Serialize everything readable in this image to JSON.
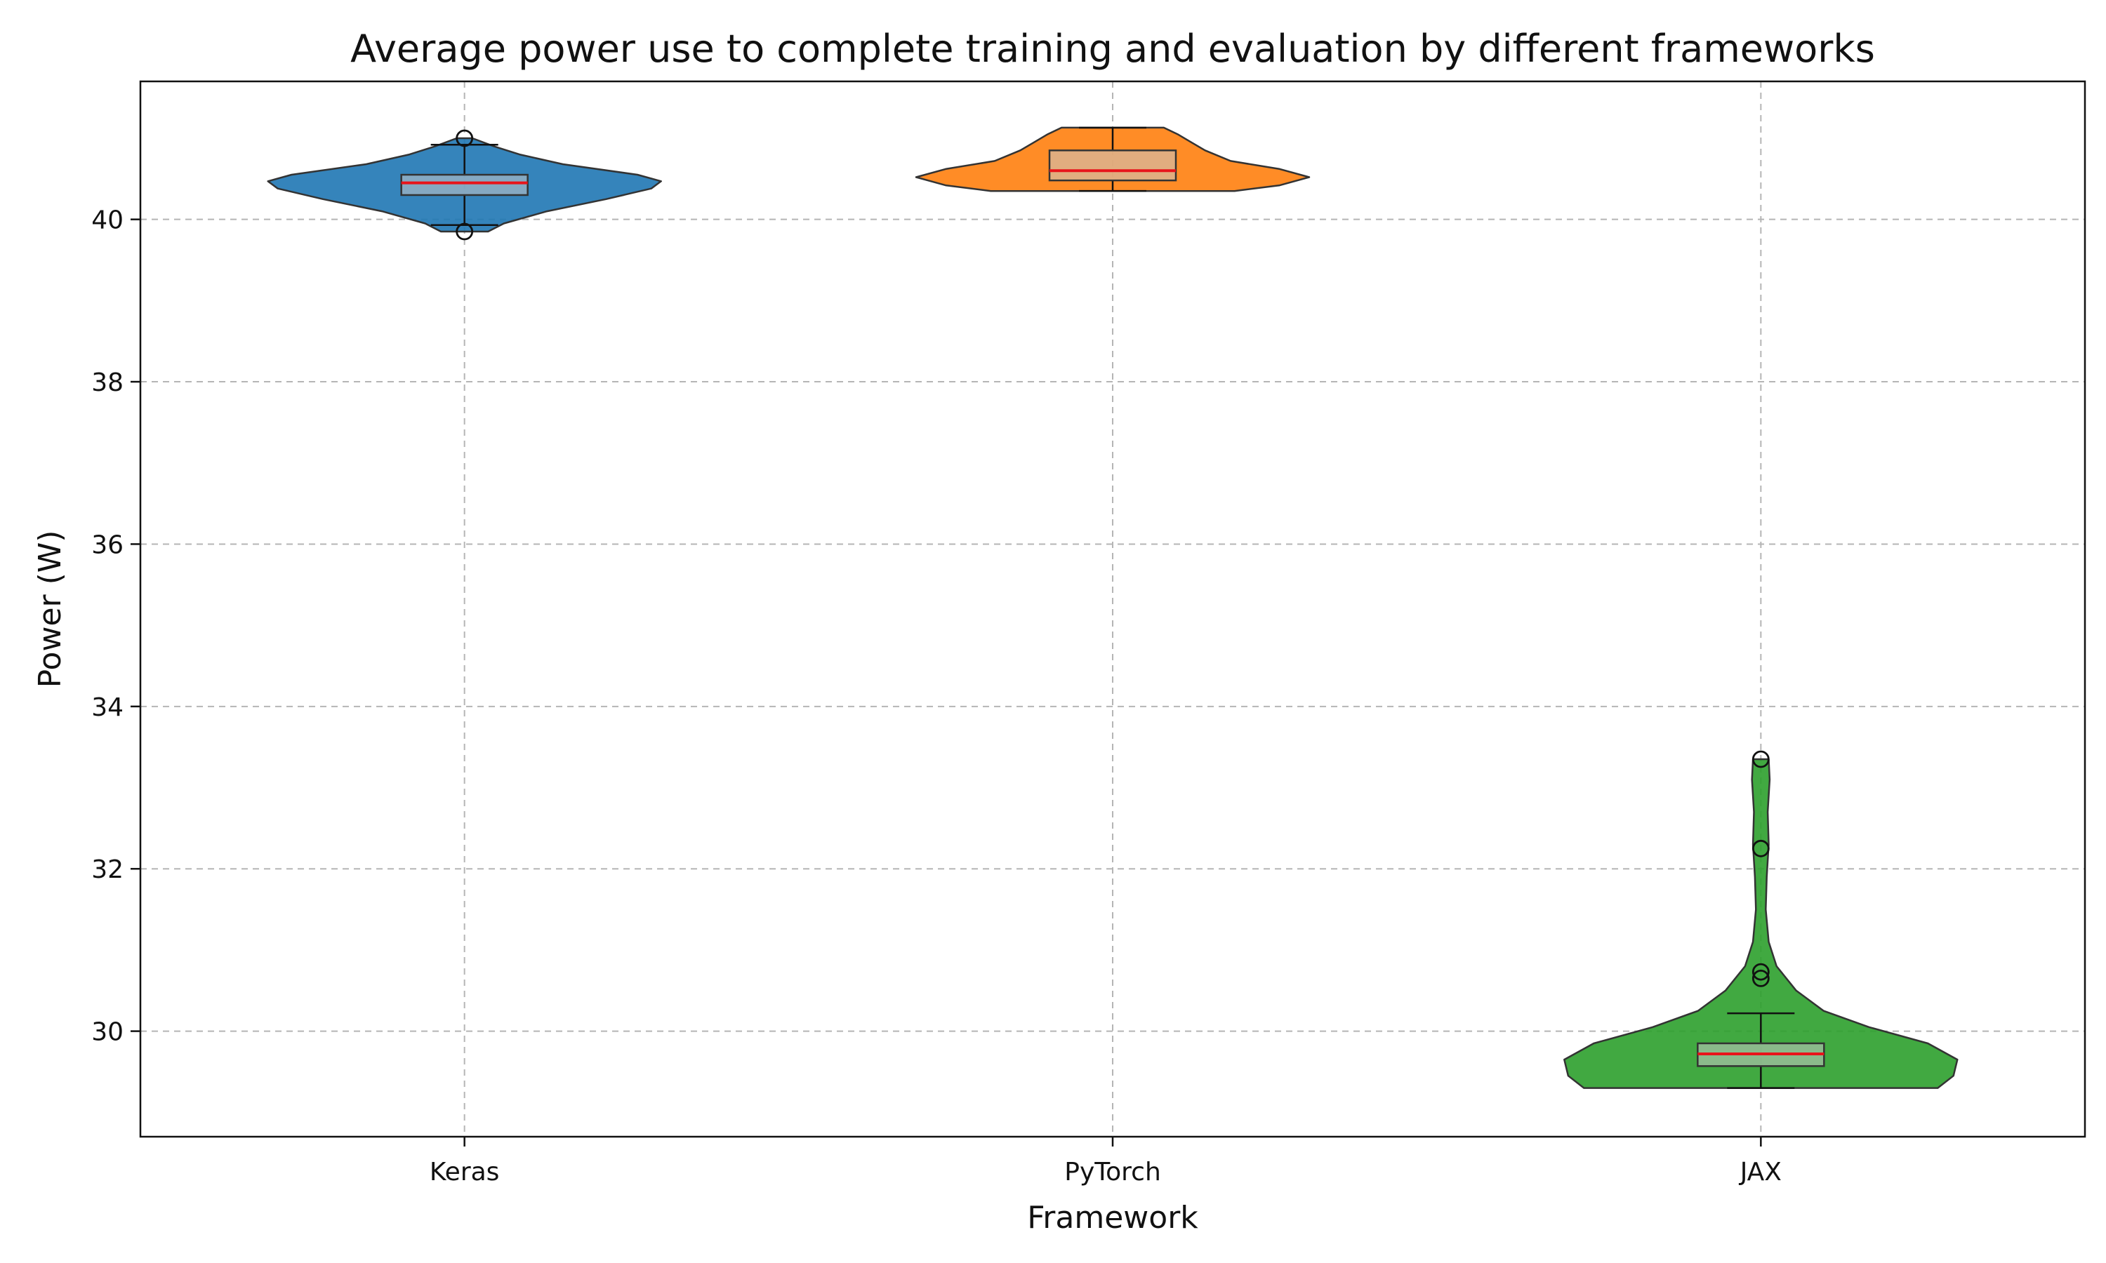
{
  "chart_data": {
    "type": "violin",
    "title": "Average power use to complete training and evaluation by different frameworks",
    "xlabel": "Framework",
    "ylabel": "Power (W)",
    "categories": [
      "Keras",
      "PyTorch",
      "JAX"
    ],
    "ylim": [
      28.7,
      41.7
    ],
    "yticks": [
      "30",
      "32",
      "34",
      "36",
      "38",
      "40"
    ],
    "grid": true,
    "series": [
      {
        "category": "Keras",
        "color": "#1f77b4",
        "min": 39.85,
        "max": 41.0,
        "q1": 40.3,
        "median": 40.45,
        "q3": 40.55,
        "whisker_low": 39.93,
        "whisker_high": 40.92,
        "outliers": [
          41.0,
          39.85
        ],
        "density": [
          [
            39.85,
            0.12
          ],
          [
            39.95,
            0.2
          ],
          [
            40.1,
            0.42
          ],
          [
            40.25,
            0.72
          ],
          [
            40.38,
            0.95
          ],
          [
            40.47,
            1.0
          ],
          [
            40.55,
            0.88
          ],
          [
            40.68,
            0.5
          ],
          [
            40.8,
            0.28
          ],
          [
            40.9,
            0.15
          ],
          [
            41.0,
            0.04
          ]
        ]
      },
      {
        "category": "PyTorch",
        "color": "#ff7f0e",
        "min": 40.35,
        "max": 41.13,
        "q1": 40.48,
        "median": 40.6,
        "q3": 40.85,
        "whisker_low": 40.35,
        "whisker_high": 41.13,
        "outliers": [],
        "density": [
          [
            40.35,
            0.62
          ],
          [
            40.42,
            0.85
          ],
          [
            40.52,
            1.0
          ],
          [
            40.62,
            0.85
          ],
          [
            40.72,
            0.6
          ],
          [
            40.85,
            0.47
          ],
          [
            40.95,
            0.4
          ],
          [
            41.05,
            0.33
          ],
          [
            41.13,
            0.26
          ]
        ]
      },
      {
        "category": "JAX",
        "color": "#2ca02c",
        "min": 29.3,
        "max": 33.35,
        "q1": 29.57,
        "median": 29.72,
        "q3": 29.85,
        "whisker_low": 29.3,
        "whisker_high": 30.22,
        "outliers": [
          33.35,
          32.25,
          30.73,
          30.65
        ],
        "density": [
          [
            29.3,
            0.9
          ],
          [
            29.45,
            0.98
          ],
          [
            29.65,
            1.0
          ],
          [
            29.85,
            0.85
          ],
          [
            30.05,
            0.55
          ],
          [
            30.25,
            0.32
          ],
          [
            30.5,
            0.18
          ],
          [
            30.8,
            0.08
          ],
          [
            31.1,
            0.04
          ],
          [
            31.5,
            0.025
          ],
          [
            31.9,
            0.03
          ],
          [
            32.3,
            0.04
          ],
          [
            32.7,
            0.035
          ],
          [
            33.1,
            0.045
          ],
          [
            33.35,
            0.04
          ]
        ]
      }
    ]
  }
}
